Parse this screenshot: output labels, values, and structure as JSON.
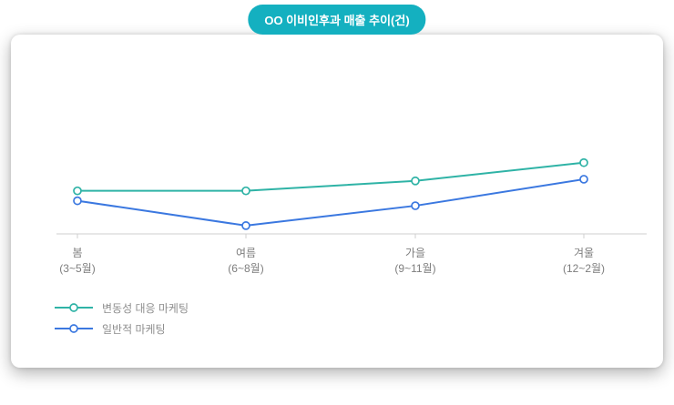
{
  "title_badge": {
    "text": "OO 이비인후과 매출 추이(건)",
    "bg_color": "#14b0c0",
    "text_color": "#ffffff"
  },
  "chart_data": {
    "type": "line",
    "title": "OO 이비인후과 매출 추이(건)",
    "categories": [
      "봄",
      "여름",
      "가을",
      "겨울"
    ],
    "category_sublabels": [
      "(3~5월)",
      "(6~8월)",
      "(9~11월)",
      "(12~2월)"
    ],
    "series": [
      {
        "name": "변동성 대응 마케팅",
        "color": "#2fb3a6",
        "values": [
          26,
          26,
          32,
          43
        ]
      },
      {
        "name": "일반적 마케팅",
        "color": "#3b78e0",
        "values": [
          20,
          5,
          17,
          33
        ]
      }
    ],
    "xlabel": "",
    "ylabel": "",
    "ylim": [
      0,
      100
    ],
    "grid": false,
    "legend_position": "bottom-left",
    "marker": "open-circle",
    "axis_color": "#cfcfcf",
    "tick_label_color": "#7d7d7d"
  }
}
